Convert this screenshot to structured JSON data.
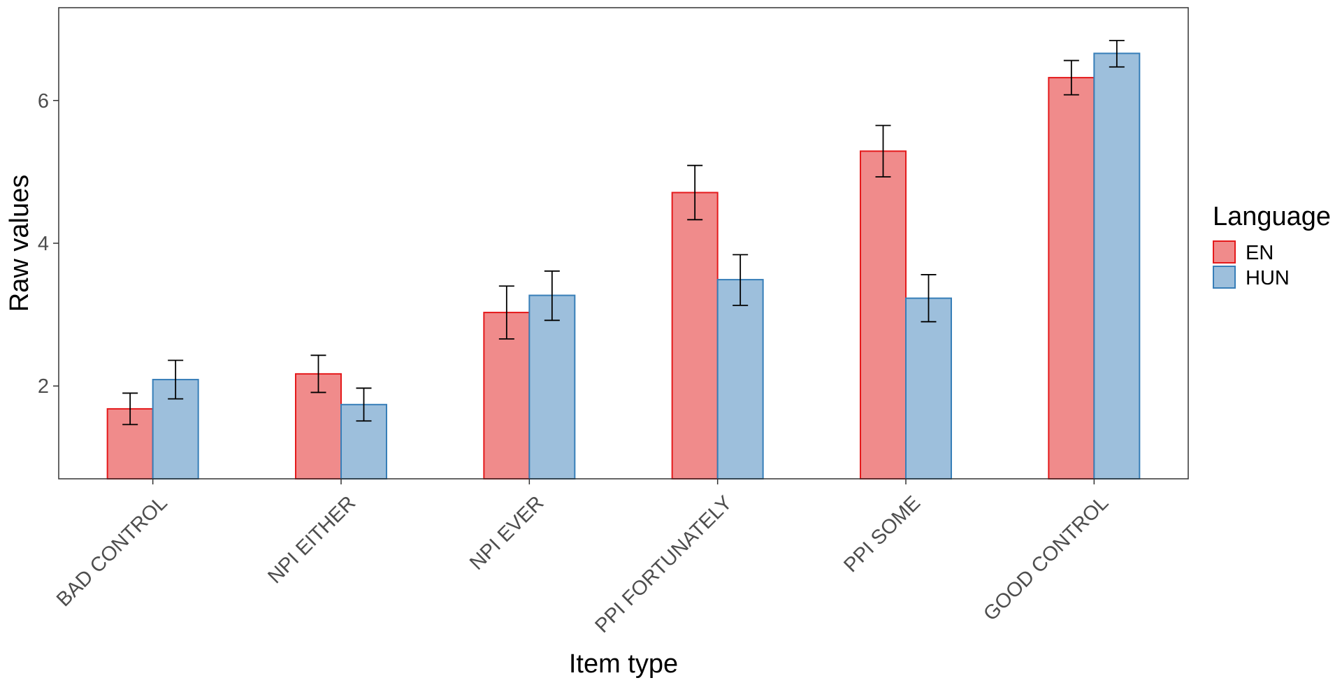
{
  "chart_data": {
    "type": "bar",
    "title": "",
    "xlabel": "Item type",
    "ylabel": "Raw values",
    "categories": [
      "BAD CONTROL",
      "NPI EITHER",
      "NPI EVER",
      "PPI FORTUNATELY",
      "PPI SOME",
      "GOOD CONTROL"
    ],
    "series": [
      {
        "name": "EN",
        "values": [
          1.68,
          2.17,
          3.03,
          4.71,
          5.29,
          6.32
        ],
        "err_low": [
          1.46,
          1.91,
          2.66,
          4.33,
          4.93,
          6.08
        ],
        "err_high": [
          1.9,
          2.43,
          3.4,
          5.09,
          5.65,
          6.56
        ],
        "fill": "#f08b8b",
        "stroke": "#e41a1c"
      },
      {
        "name": "HUN",
        "values": [
          2.09,
          1.74,
          3.27,
          3.49,
          3.23,
          6.66
        ],
        "err_low": [
          1.82,
          1.51,
          2.92,
          3.13,
          2.9,
          6.47
        ],
        "err_high": [
          2.36,
          1.97,
          3.61,
          3.84,
          3.56,
          6.84
        ],
        "fill": "#9dbfdc",
        "stroke": "#377eb8"
      }
    ],
    "ylim": [
      0.7,
      7.3
    ],
    "yticks": [
      2,
      4,
      6
    ],
    "grid": false,
    "legend": {
      "title": "Language",
      "position": "right"
    }
  }
}
